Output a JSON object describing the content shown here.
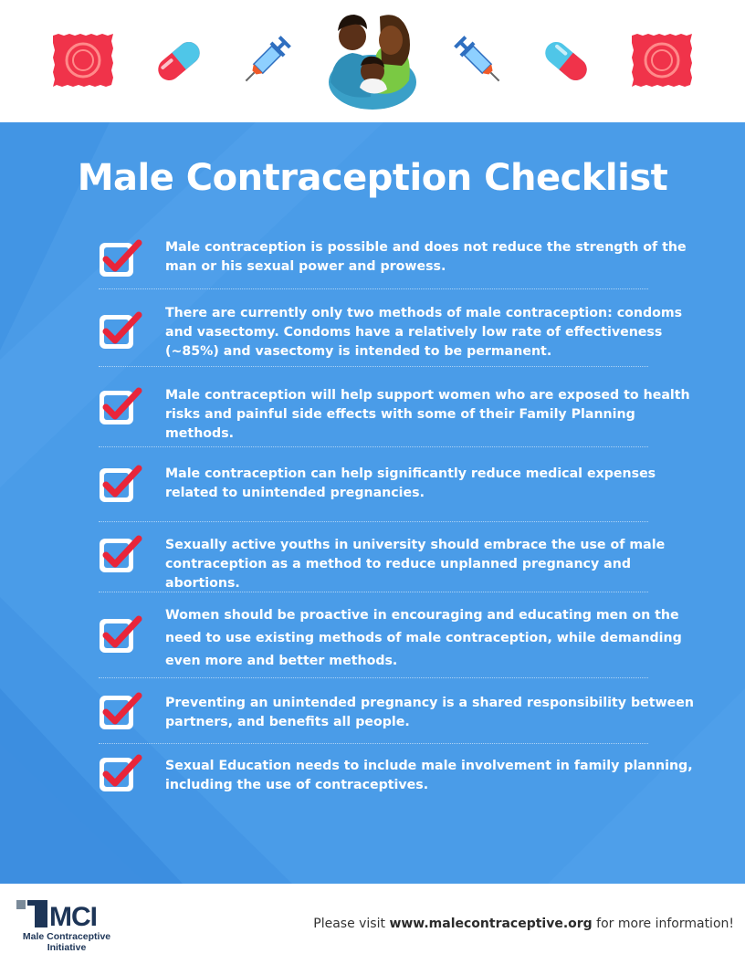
{
  "title": "Male Contraception Checklist",
  "header_icons": [
    "condom-icon",
    "pill-icon",
    "syringe-icon",
    "family-icon",
    "syringe-icon",
    "pill-icon",
    "condom-icon"
  ],
  "checklist": [
    {
      "text": "Male contraception is possible and does not reduce the strength of the man or his sexual power and prowess."
    },
    {
      "text": "There are currently only two methods of male contraception: condoms and vasectomy. Condoms have a relatively low rate of effectiveness (~85%) and vasectomy is intended to be permanent."
    },
    {
      "text": "Male contraception will help support women who are exposed to health risks and painful side effects with some of their Family Planning methods."
    },
    {
      "text": "Male contraception can help significantly reduce medical expenses related to unintended pregnancies."
    },
    {
      "text": "Sexually active youths in university should embrace the use of male contraception as a method to reduce unplanned pregnancy and abortions."
    },
    {
      "text": "Women should be proactive in encouraging and educating men on the need to use existing methods of male contraception, while demanding even more and better methods."
    },
    {
      "text": "Preventing an unintended pregnancy is a shared responsibility between partners, and benefits all people."
    },
    {
      "text": "Sexual Education needs to include male involvement in family planning, including the use of contraceptives."
    }
  ],
  "footer": {
    "logo_abbr": "MCI",
    "logo_name_line1": "Male Contraceptive",
    "logo_name_line2": "Initiative",
    "visit_prefix": "Please visit ",
    "visit_url": "www.malecontraceptive.org",
    "visit_suffix": " for more information!"
  },
  "colors": {
    "background_blue": "#4a9ce8",
    "check_red": "#e8253a",
    "condom_red": "#f0334a",
    "navy": "#1d3557"
  }
}
